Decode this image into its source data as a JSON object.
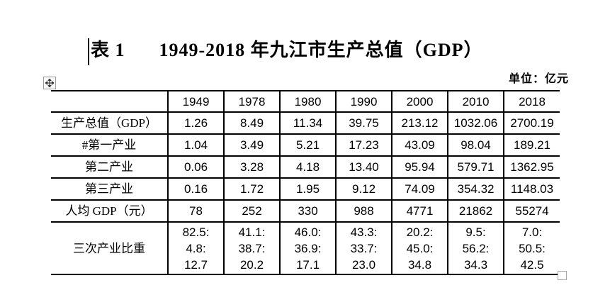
{
  "page": {
    "title_label": "表 1",
    "title_text": "1949-2018 年九江市生产总值（GDP）",
    "unit_label": "单位：亿元"
  },
  "icons": {
    "move_handle": "four-direction-move-arrows",
    "resize_handle": "open-square"
  },
  "table": {
    "columns": [
      "",
      "1949",
      "1978",
      "1980",
      "1990",
      "2000",
      "2010",
      "2018"
    ],
    "rows": [
      {
        "label": "生产总值（GDP）",
        "values": [
          "1.26",
          "8.49",
          "11.34",
          "39.75",
          "213.12",
          "1032.06",
          "2700.19"
        ]
      },
      {
        "label": "#第一产业",
        "values": [
          "1.04",
          "3.49",
          "5.21",
          "17.23",
          "43.09",
          "98.04",
          "189.21"
        ]
      },
      {
        "label": "第二产业",
        "values": [
          "0.06",
          "3.28",
          "4.18",
          "13.40",
          "95.94",
          "579.71",
          "1362.95"
        ]
      },
      {
        "label": "第三产业",
        "values": [
          "0.16",
          "1.72",
          "1.95",
          "9.12",
          "74.09",
          "354.32",
          "1148.03"
        ]
      },
      {
        "label": "人均 GDP（元）",
        "values": [
          "78",
          "252",
          "330",
          "988",
          "4771",
          "21862",
          "55274"
        ]
      },
      {
        "label": "三次产业比重",
        "values": [
          "82.5:\n4.8:\n12.7",
          "41.1:\n38.7:\n20.2",
          "46.0:\n36.9:\n17.1",
          "43.3:\n33.7:\n23.0",
          "20.2:\n45.0:\n34.8",
          "9.5:\n56.2:\n34.3",
          "7.0:\n50.5:\n42.5"
        ]
      }
    ]
  }
}
